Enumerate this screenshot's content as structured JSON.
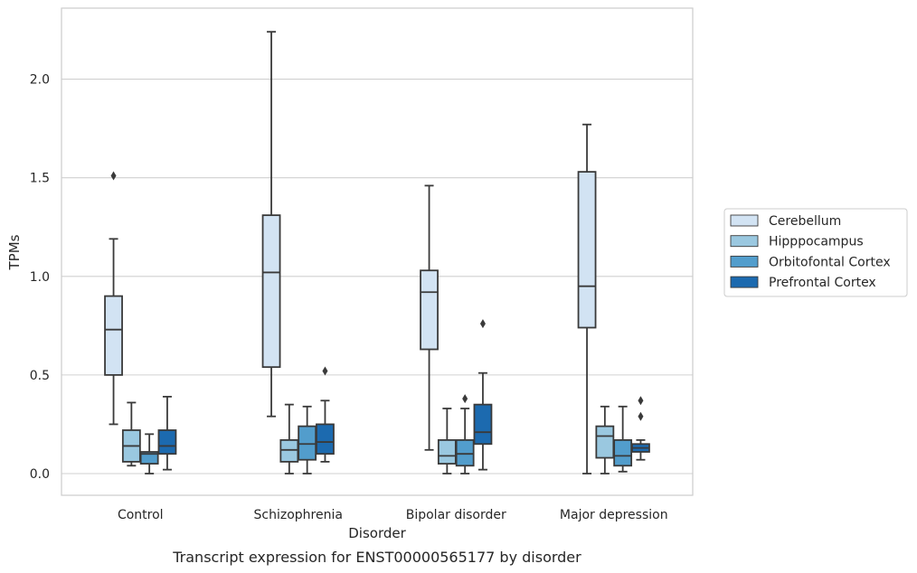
{
  "caption": "Transcript expression for ENST00000565177 by disorder",
  "chart_data": {
    "type": "box",
    "xlabel": "Disorder",
    "ylabel": "TPMs",
    "ylim": [
      -0.11,
      2.36
    ],
    "yticks": [
      0.0,
      0.5,
      1.0,
      1.5,
      2.0
    ],
    "ytick_labels": [
      "0.0",
      "0.5",
      "1.0",
      "1.5",
      "2.0"
    ],
    "grid": "horizontal",
    "legend_position": "right",
    "categories": [
      "Control",
      "Schizophrenia",
      "Bipolar disorder",
      "Major depression"
    ],
    "series": [
      {
        "name": "Cerebellum",
        "color": "#d2e3f3",
        "boxes": [
          {
            "whisker_low": 0.25,
            "q1": 0.5,
            "median": 0.73,
            "q3": 0.9,
            "whisker_high": 1.19,
            "outliers": [
              1.51
            ]
          },
          {
            "whisker_low": 0.29,
            "q1": 0.54,
            "median": 1.02,
            "q3": 1.31,
            "whisker_high": 2.24,
            "outliers": []
          },
          {
            "whisker_low": 0.12,
            "q1": 0.63,
            "median": 0.92,
            "q3": 1.03,
            "whisker_high": 1.46,
            "outliers": []
          },
          {
            "whisker_low": 0.0,
            "q1": 0.74,
            "median": 0.95,
            "q3": 1.53,
            "whisker_high": 1.77,
            "outliers": []
          }
        ]
      },
      {
        "name": "Hipppocampus",
        "color": "#9ac8e0",
        "boxes": [
          {
            "whisker_low": 0.04,
            "q1": 0.06,
            "median": 0.14,
            "q3": 0.22,
            "whisker_high": 0.36,
            "outliers": []
          },
          {
            "whisker_low": 0.0,
            "q1": 0.06,
            "median": 0.12,
            "q3": 0.17,
            "whisker_high": 0.35,
            "outliers": []
          },
          {
            "whisker_low": 0.0,
            "q1": 0.05,
            "median": 0.09,
            "q3": 0.17,
            "whisker_high": 0.33,
            "outliers": []
          },
          {
            "whisker_low": 0.0,
            "q1": 0.08,
            "median": 0.19,
            "q3": 0.24,
            "whisker_high": 0.34,
            "outliers": []
          }
        ]
      },
      {
        "name": "Orbitofontal Cortex",
        "color": "#529dcc",
        "boxes": [
          {
            "whisker_low": 0.0,
            "q1": 0.05,
            "median": 0.1,
            "q3": 0.11,
            "whisker_high": 0.2,
            "outliers": []
          },
          {
            "whisker_low": 0.0,
            "q1": 0.07,
            "median": 0.15,
            "q3": 0.24,
            "whisker_high": 0.34,
            "outliers": []
          },
          {
            "whisker_low": 0.0,
            "q1": 0.04,
            "median": 0.1,
            "q3": 0.17,
            "whisker_high": 0.33,
            "outliers": [
              0.38
            ]
          },
          {
            "whisker_low": 0.01,
            "q1": 0.04,
            "median": 0.09,
            "q3": 0.17,
            "whisker_high": 0.34,
            "outliers": []
          }
        ]
      },
      {
        "name": "Prefrontal Cortex",
        "color": "#1c6aaf",
        "boxes": [
          {
            "whisker_low": 0.02,
            "q1": 0.1,
            "median": 0.14,
            "q3": 0.22,
            "whisker_high": 0.39,
            "outliers": []
          },
          {
            "whisker_low": 0.06,
            "q1": 0.1,
            "median": 0.16,
            "q3": 0.25,
            "whisker_high": 0.37,
            "outliers": [
              0.52
            ]
          },
          {
            "whisker_low": 0.02,
            "q1": 0.15,
            "median": 0.21,
            "q3": 0.35,
            "whisker_high": 0.51,
            "outliers": [
              0.76
            ]
          },
          {
            "whisker_low": 0.07,
            "q1": 0.11,
            "median": 0.13,
            "q3": 0.15,
            "whisker_high": 0.17,
            "outliers": [
              0.29,
              0.37
            ]
          }
        ]
      }
    ]
  }
}
